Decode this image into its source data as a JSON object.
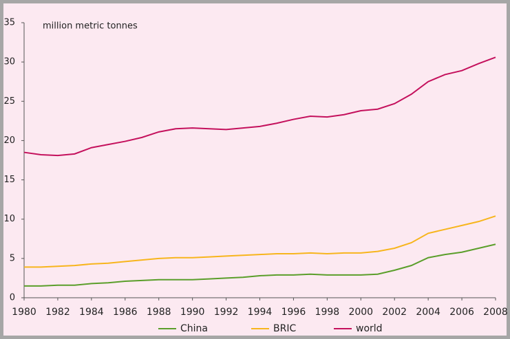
{
  "chart_data": {
    "type": "line",
    "annotation": "million metric tonnes",
    "x": [
      1980,
      1981,
      1982,
      1983,
      1984,
      1985,
      1986,
      1987,
      1988,
      1989,
      1990,
      1991,
      1992,
      1993,
      1994,
      1995,
      1996,
      1997,
      1998,
      1999,
      2000,
      2001,
      2002,
      2003,
      2004,
      2005,
      2006,
      2007,
      2008
    ],
    "series": [
      {
        "name": "China",
        "color": "#5a9e2a",
        "values": [
          1.5,
          1.5,
          1.6,
          1.6,
          1.8,
          1.9,
          2.1,
          2.2,
          2.3,
          2.3,
          2.3,
          2.4,
          2.5,
          2.6,
          2.8,
          2.9,
          2.9,
          3.0,
          2.9,
          2.9,
          2.9,
          3.0,
          3.5,
          4.1,
          5.1,
          5.5,
          5.8,
          6.3,
          6.8
        ]
      },
      {
        "name": "BRIC",
        "color": "#f7b51c",
        "values": [
          3.9,
          3.9,
          4.0,
          4.1,
          4.3,
          4.4,
          4.6,
          4.8,
          5.0,
          5.1,
          5.1,
          5.2,
          5.3,
          5.4,
          5.5,
          5.6,
          5.6,
          5.7,
          5.6,
          5.7,
          5.7,
          5.9,
          6.3,
          7.0,
          8.2,
          8.7,
          9.2,
          9.7,
          10.4
        ]
      },
      {
        "name": "world",
        "color": "#c4105c",
        "values": [
          18.5,
          18.2,
          18.1,
          18.3,
          19.1,
          19.5,
          19.9,
          20.4,
          21.1,
          21.5,
          21.6,
          21.5,
          21.4,
          21.6,
          21.8,
          22.2,
          22.7,
          23.1,
          23.0,
          23.3,
          23.8,
          24.0,
          24.7,
          25.9,
          27.5,
          28.4,
          28.9,
          29.8,
          30.6
        ]
      }
    ],
    "xlim": [
      1980,
      2008
    ],
    "xticks": [
      1980,
      1982,
      1984,
      1986,
      1988,
      1990,
      1992,
      1994,
      1996,
      1998,
      2000,
      2002,
      2004,
      2006,
      2008
    ],
    "ylim": [
      0,
      35
    ],
    "yticks": [
      0,
      5,
      10,
      15,
      20,
      25,
      30,
      35
    ],
    "legend": "bottom"
  }
}
